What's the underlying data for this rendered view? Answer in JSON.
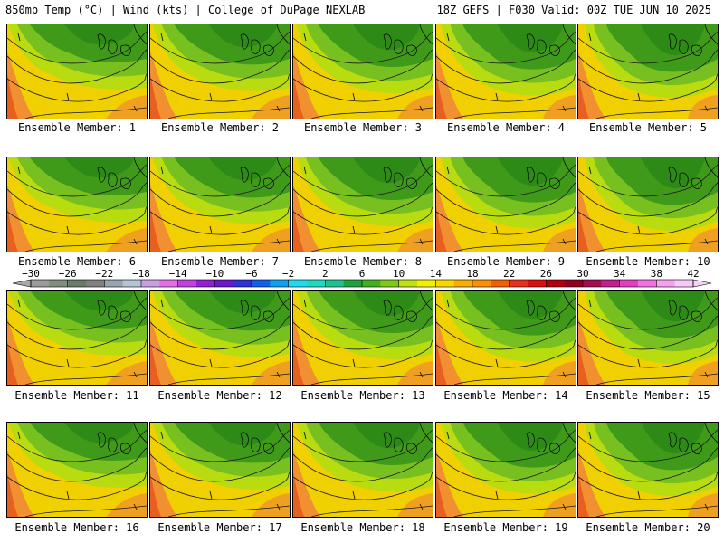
{
  "header": {
    "left": "850mb Temp (°C) | Wind (kts) | College of DuPage NEXLAB",
    "right": "18Z GEFS | F030 Valid: 00Z TUE JUN 10 2025"
  },
  "panels": [
    {
      "label": "Ensemble Member: 1"
    },
    {
      "label": "Ensemble Member: 2"
    },
    {
      "label": "Ensemble Member: 3"
    },
    {
      "label": "Ensemble Member: 4"
    },
    {
      "label": "Ensemble Member: 5"
    },
    {
      "label": "Ensemble Member: 6"
    },
    {
      "label": "Ensemble Member: 7"
    },
    {
      "label": "Ensemble Member: 8"
    },
    {
      "label": "Ensemble Member: 9"
    },
    {
      "label": "Ensemble Member: 10"
    },
    {
      "label": "Ensemble Member: 11"
    },
    {
      "label": "Ensemble Member: 12"
    },
    {
      "label": "Ensemble Member: 13"
    },
    {
      "label": "Ensemble Member: 14"
    },
    {
      "label": "Ensemble Member: 15"
    },
    {
      "label": "Ensemble Member: 16"
    },
    {
      "label": "Ensemble Member: 17"
    },
    {
      "label": "Ensemble Member: 18"
    },
    {
      "label": "Ensemble Member: 19"
    },
    {
      "label": "Ensemble Member: 20"
    }
  ],
  "colorbar": {
    "ticks": [
      "−30",
      "−26",
      "−22",
      "−18",
      "−14",
      "−10",
      "−6",
      "−2",
      "2",
      "6",
      "10",
      "14",
      "18",
      "22",
      "26",
      "30",
      "34",
      "38",
      "42"
    ],
    "colors": [
      "#9a9a9a",
      "#7f8f7f",
      "#6b7b6b",
      "#808080",
      "#9aa3b0",
      "#b4c4d4",
      "#c8a0e0",
      "#e070e8",
      "#c040e0",
      "#9020d0",
      "#6a18c8",
      "#3030d8",
      "#1060e8",
      "#10a0f0",
      "#20d8f0",
      "#20d8c0",
      "#20c090",
      "#20a040",
      "#40b020",
      "#80c818",
      "#c0e010",
      "#f0f000",
      "#f8d800",
      "#f8b000",
      "#f89000",
      "#f06000",
      "#e83020",
      "#d81010",
      "#b00010",
      "#900020",
      "#a01050",
      "#c02090",
      "#e040c0",
      "#f070e0",
      "#f8a0f0",
      "#f8c8f8"
    ]
  }
}
